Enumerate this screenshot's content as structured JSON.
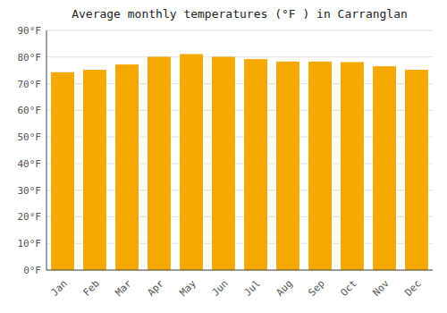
{
  "chart_data": {
    "type": "bar",
    "title": "Average monthly temperatures (°F ) in Carranglan",
    "categories": [
      "Jan",
      "Feb",
      "Mar",
      "Apr",
      "May",
      "Jun",
      "Jul",
      "Aug",
      "Sep",
      "Oct",
      "Nov",
      "Dec"
    ],
    "values": [
      74.3,
      75.2,
      77.2,
      80.1,
      81.1,
      80.1,
      79.2,
      78.3,
      78.3,
      78.1,
      76.5,
      75.2
    ],
    "color": "#F5A800",
    "ylim": [
      0,
      90
    ],
    "yticks": [
      {
        "value": 0,
        "label": "0°F"
      },
      {
        "value": 10,
        "label": "10°F"
      },
      {
        "value": 20,
        "label": "20°F"
      },
      {
        "value": 30,
        "label": "30°F"
      },
      {
        "value": 40,
        "label": "40°F"
      },
      {
        "value": 50,
        "label": "50°F"
      },
      {
        "value": 60,
        "label": "60°F"
      },
      {
        "value": 70,
        "label": "70°F"
      },
      {
        "value": 80,
        "label": "80°F"
      },
      {
        "value": 90,
        "label": "90°F"
      }
    ],
    "grid": true
  }
}
